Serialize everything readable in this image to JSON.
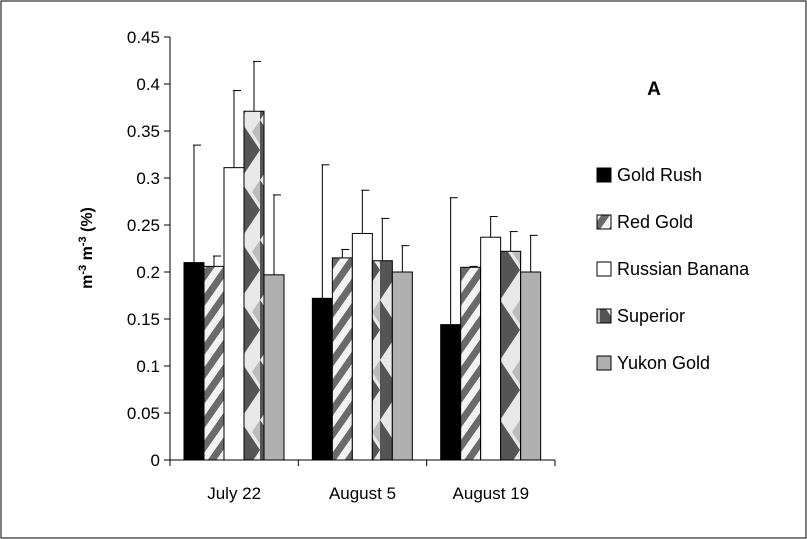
{
  "chart_data": {
    "type": "bar",
    "panel_label": "A",
    "title": "",
    "xlabel": "",
    "ylabel_main": "m",
    "ylabel_sup1": "-3",
    "ylabel_mid": " m",
    "ylabel_sup2": "-3",
    "ylabel_tail": " (%)",
    "ylim": [
      0,
      0.45
    ],
    "ytick_step": 0.05,
    "ytick_labels": [
      "0",
      "0.05",
      "0.1",
      "0.15",
      "0.2",
      "0.25",
      "0.3",
      "0.35",
      "0.4",
      "0.45"
    ],
    "categories": [
      "July 22",
      "August 5",
      "August 19"
    ],
    "legend_position": "right",
    "series": [
      {
        "name": "Gold Rush",
        "values": [
          0.21,
          0.172,
          0.144
        ],
        "errors": [
          0.125,
          0.142,
          0.135
        ],
        "color": "#000000",
        "pattern": "solid"
      },
      {
        "name": "Red Gold",
        "values": [
          0.206,
          0.215,
          0.205
        ],
        "errors": [
          0.011,
          0.009,
          0.001
        ],
        "color": "#808080",
        "pattern": "diagonal"
      },
      {
        "name": "Russian Banana",
        "values": [
          0.311,
          0.241,
          0.237
        ],
        "errors": [
          0.082,
          0.046,
          0.022
        ],
        "color": "#ffffff",
        "pattern": "solid"
      },
      {
        "name": "Superior",
        "values": [
          0.371,
          0.212,
          0.222
        ],
        "errors": [
          0.053,
          0.045,
          0.021
        ],
        "color": "#808080",
        "pattern": "chevron"
      },
      {
        "name": "Yukon Gold",
        "values": [
          0.197,
          0.2,
          0.2
        ],
        "errors": [
          0.085,
          0.028,
          0.039
        ],
        "color": "#b0b0b0",
        "pattern": "solid"
      }
    ]
  }
}
